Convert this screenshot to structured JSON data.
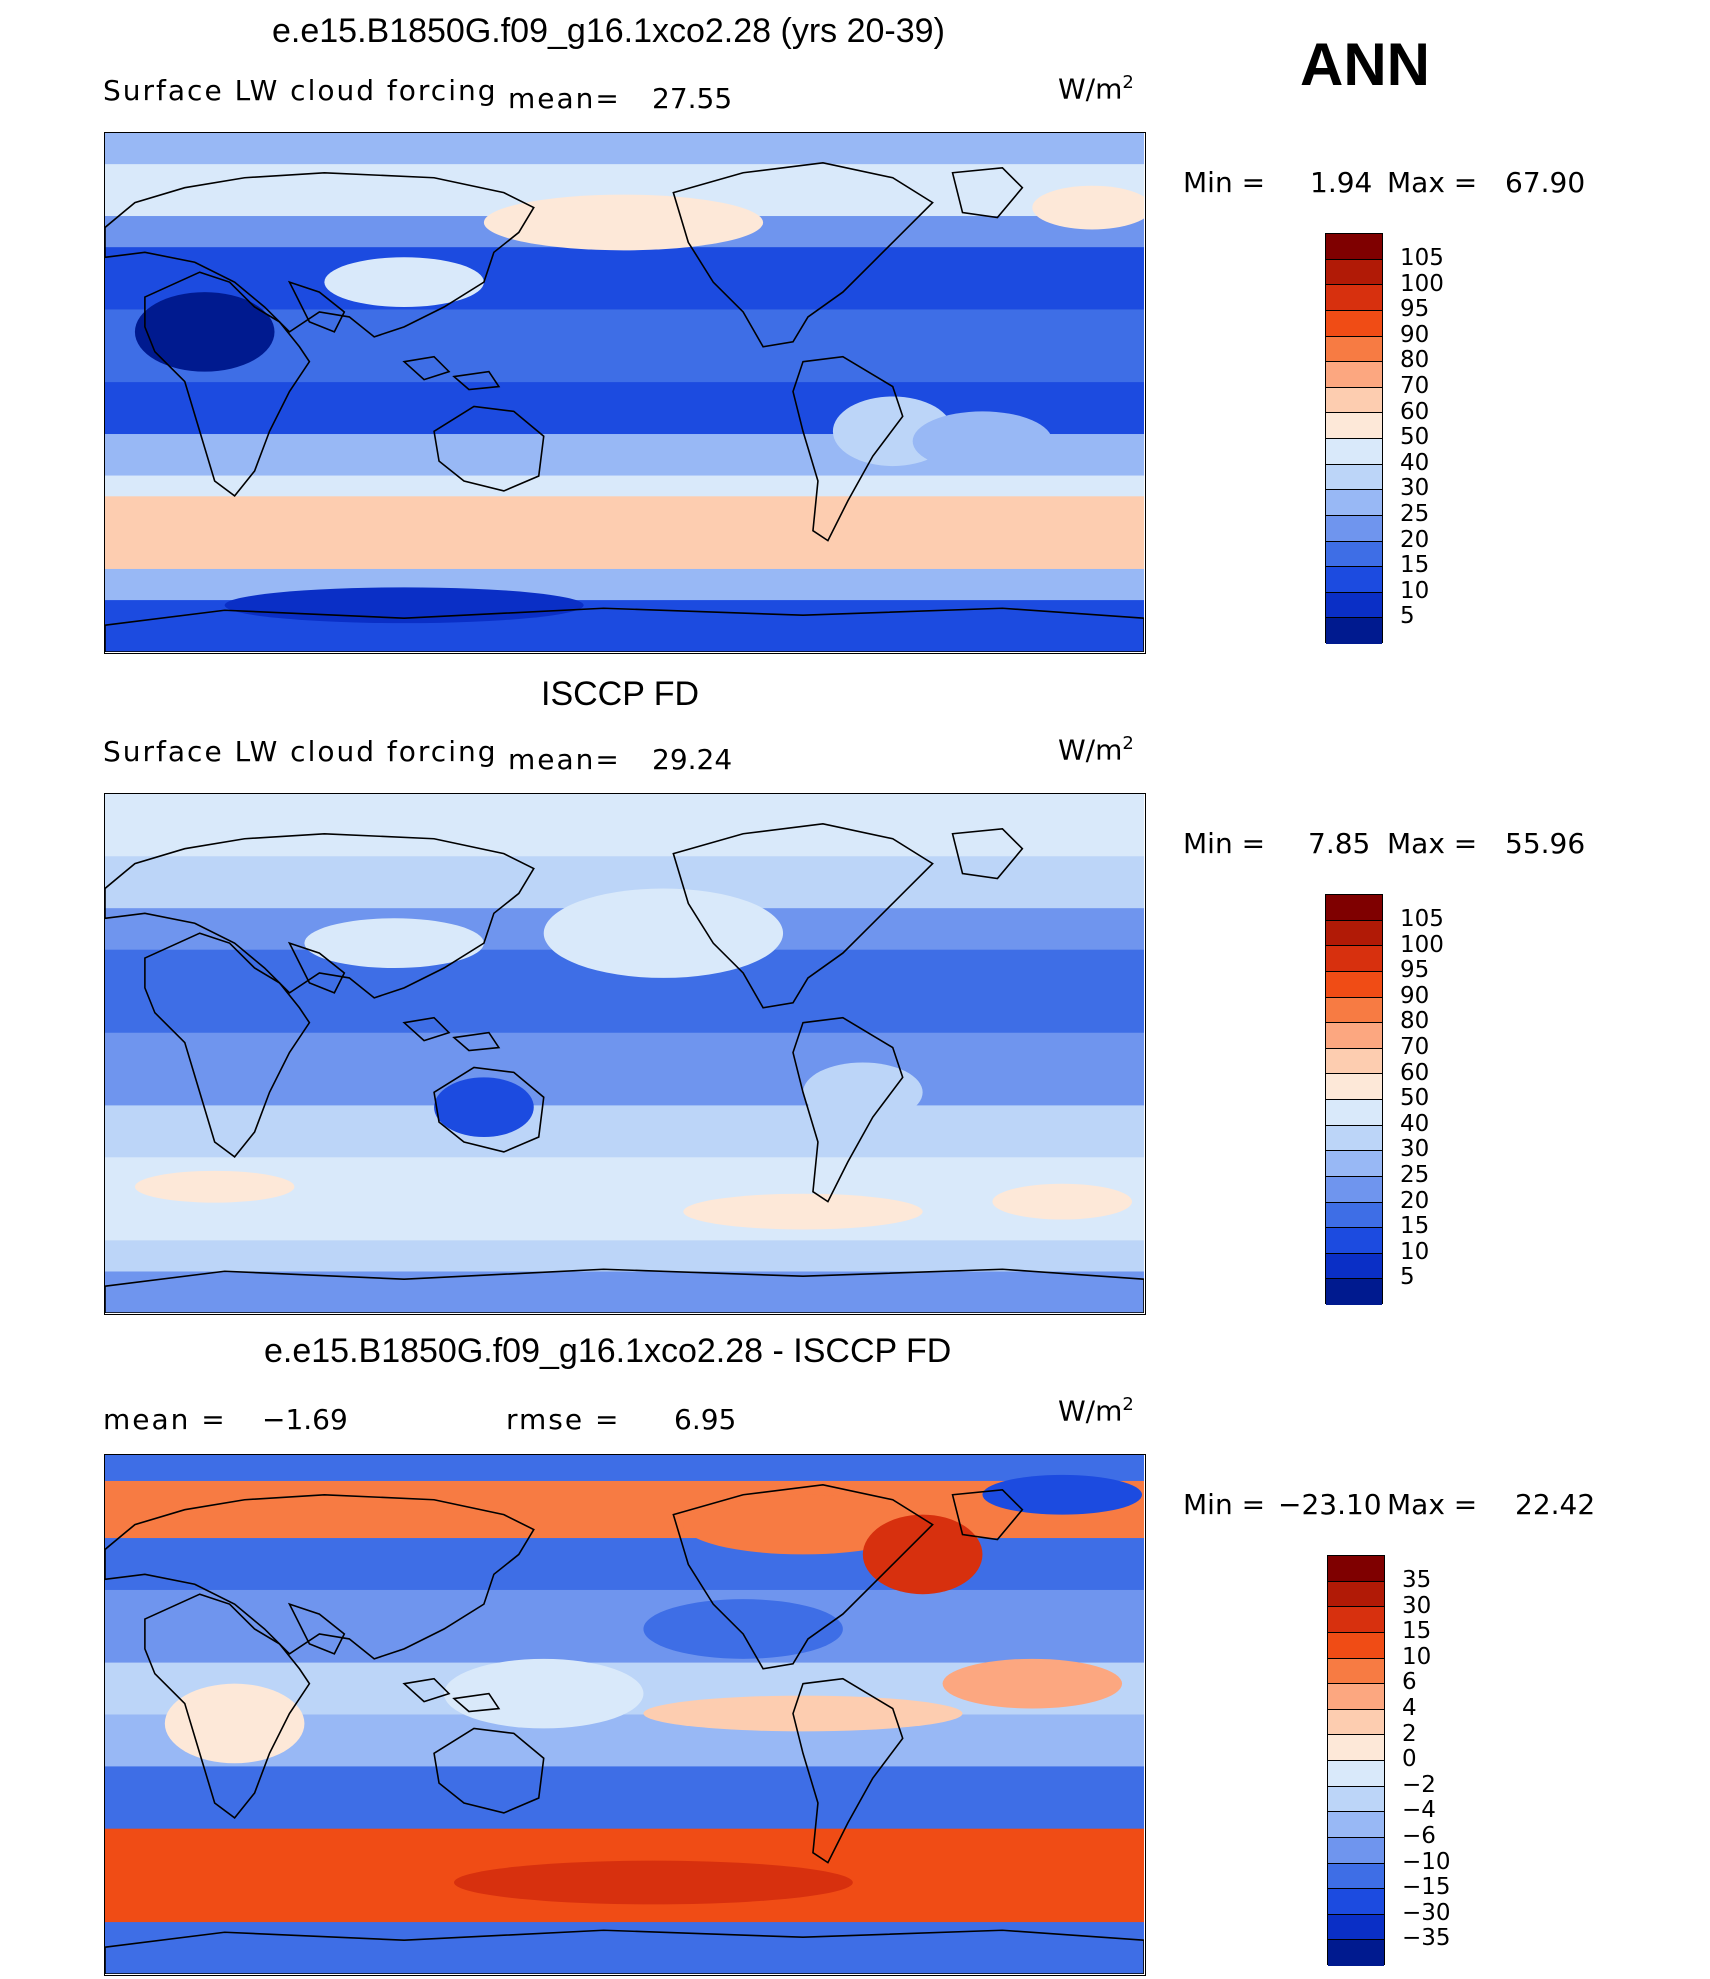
{
  "season": "ANN",
  "panels": [
    {
      "id": "model",
      "title": "e.e15.B1850G.f09_g16.1xco2.28 (yrs 20-39)",
      "left_label": "Surface LW cloud forcing",
      "mean_label": "mean=",
      "mean_value": "27.55",
      "units_base": "W/m",
      "units_exp": "2",
      "min_label": "Min  =",
      "min_value": "1.94",
      "max_label": "Max  =",
      "max_value": "67.90",
      "colorbar": {
        "levels": [
          "105",
          "100",
          "95",
          "90",
          "80",
          "70",
          "60",
          "50",
          "40",
          "30",
          "25",
          "20",
          "15",
          "10",
          "5"
        ],
        "colors": [
          "#7f0000",
          "#b11a06",
          "#d7300e",
          "#f04c15",
          "#f77b43",
          "#fca780",
          "#fdcdb0",
          "#fde8d8",
          "#d9e9fa",
          "#bcd5f8",
          "#98b8f5",
          "#6f95ee",
          "#3e6ee6",
          "#1c4be0",
          "#0a2fc6",
          "#001a8f"
        ]
      },
      "map_tint": "base"
    },
    {
      "id": "obs",
      "title": "ISCCP FD",
      "left_label": "Surface LW cloud forcing",
      "mean_label": "mean=",
      "mean_value": "29.24",
      "units_base": "W/m",
      "units_exp": "2",
      "min_label": "Min  =",
      "min_value": "7.85",
      "max_label": "Max  =",
      "max_value": "55.96",
      "colorbar": {
        "levels": [
          "105",
          "100",
          "95",
          "90",
          "80",
          "70",
          "60",
          "50",
          "40",
          "30",
          "25",
          "20",
          "15",
          "10",
          "5"
        ],
        "colors": [
          "#7f0000",
          "#b11a06",
          "#d7300e",
          "#f04c15",
          "#f77b43",
          "#fca780",
          "#fdcdb0",
          "#fde8d8",
          "#d9e9fa",
          "#bcd5f8",
          "#98b8f5",
          "#6f95ee",
          "#3e6ee6",
          "#1c4be0",
          "#0a2fc6",
          "#001a8f"
        ]
      },
      "map_tint": "light"
    },
    {
      "id": "diff",
      "title": "e.e15.B1850G.f09_g16.1xco2.28 - ISCCP FD",
      "left_label": "mean  =",
      "left_value": "−1.69",
      "rmse_label": "rmse  =",
      "rmse_value": "6.95",
      "units_base": "W/m",
      "units_exp": "2",
      "min_label": "Min  =",
      "min_value": "−23.10",
      "max_label": "Max  =",
      "max_value": "22.42",
      "colorbar": {
        "levels": [
          "35",
          "30",
          "15",
          "10",
          "6",
          "4",
          "2",
          "0",
          "−2",
          "−4",
          "−6",
          "−10",
          "−15",
          "−30",
          "−35"
        ],
        "colors": [
          "#7f0000",
          "#b11a06",
          "#d7300e",
          "#f04c15",
          "#f77b43",
          "#fca780",
          "#fdcdb0",
          "#fde8d8",
          "#d9e9fa",
          "#bcd5f8",
          "#98b8f5",
          "#6f95ee",
          "#3e6ee6",
          "#1c4be0",
          "#0a2fc6",
          "#001a8f"
        ]
      },
      "map_tint": "diff"
    }
  ]
}
